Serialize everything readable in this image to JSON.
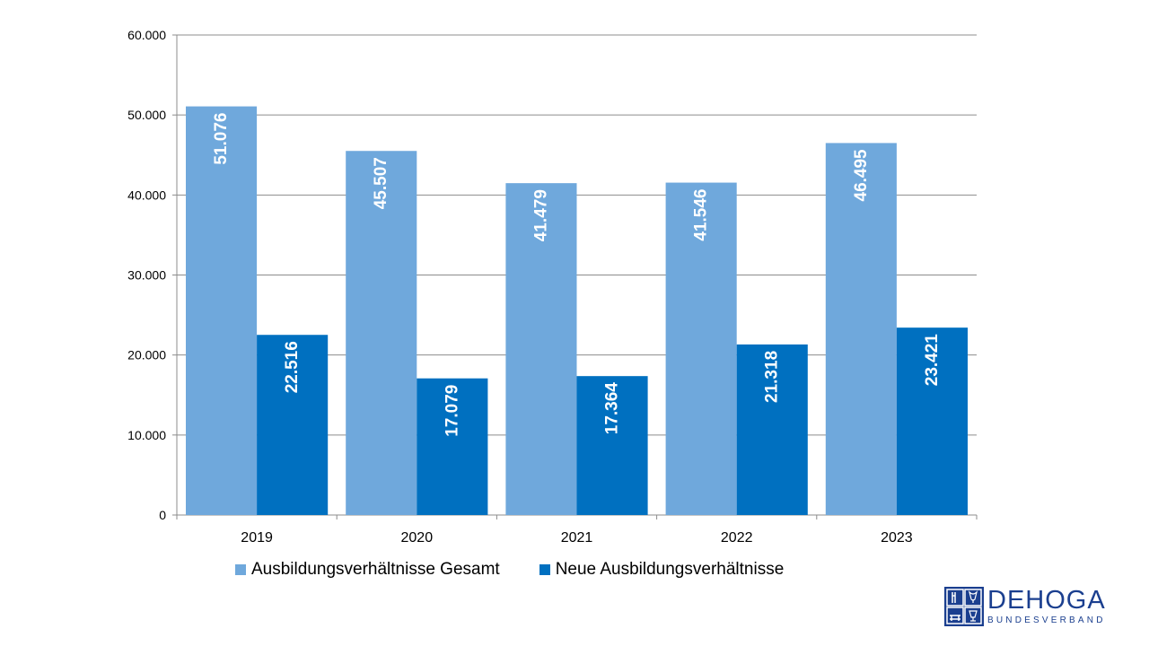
{
  "chart_data": {
    "type": "bar",
    "categories": [
      "2019",
      "2020",
      "2021",
      "2022",
      "2023"
    ],
    "series": [
      {
        "name": "Ausbildungsverhältnisse Gesamt",
        "values": [
          51076,
          45507,
          41479,
          41546,
          46495
        ],
        "labels": [
          "51.076",
          "45.507",
          "41.479",
          "41.546",
          "46.495"
        ],
        "color": "#6fa8dc"
      },
      {
        "name": "Neue Ausbildungsverhältnisse",
        "values": [
          22516,
          17079,
          17364,
          21318,
          23421
        ],
        "labels": [
          "22.516",
          "17.079",
          "17.364",
          "21.318",
          "23.421"
        ],
        "color": "#0070c0"
      }
    ],
    "ylim": [
      0,
      60000
    ],
    "yticks": [
      0,
      10000,
      20000,
      30000,
      40000,
      50000,
      60000
    ],
    "ytick_labels": [
      "0",
      "10.000",
      "20.000",
      "30.000",
      "40.000",
      "50.000",
      "60.000"
    ],
    "grid": true,
    "legend_position": "bottom",
    "title": "",
    "xlabel": "",
    "ylabel": ""
  },
  "logo": {
    "title": "DEHOGA",
    "subtitle": "BUNDESVERBAND",
    "color": "#1b3f8f",
    "icon": "dehoga-emblem-icon"
  }
}
